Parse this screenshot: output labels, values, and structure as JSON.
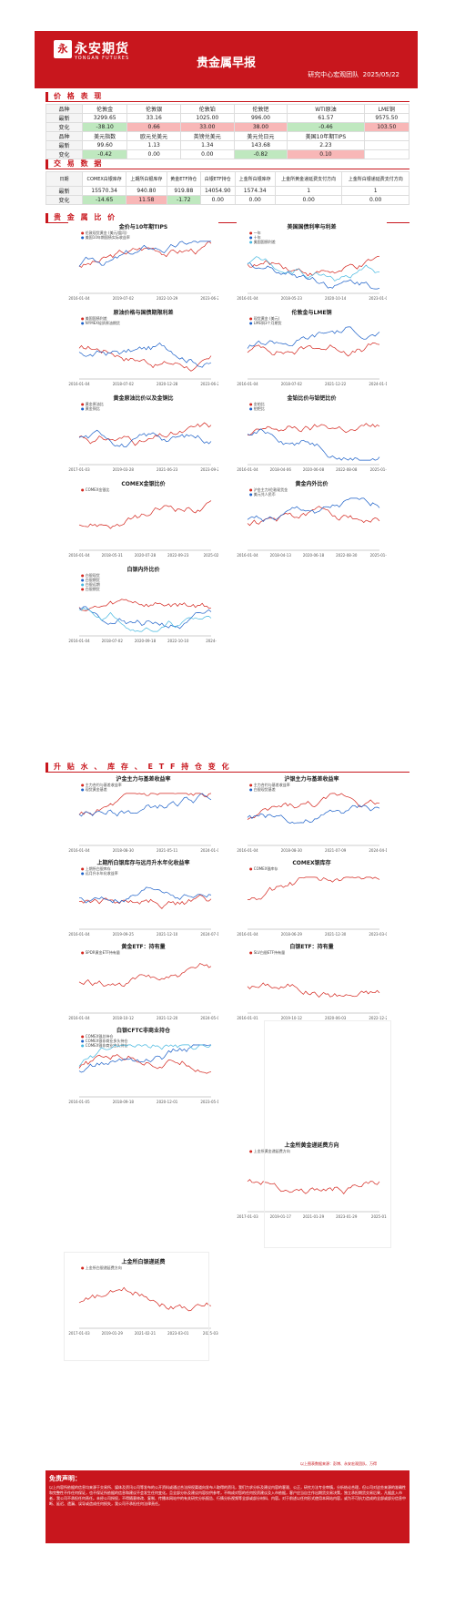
{
  "header": {
    "brand": "永安期货",
    "brand_en": "YONGAN FUTURES",
    "title": "贵金属早报",
    "team": "研究中心宏观团队",
    "date": "2025/05/22"
  },
  "sections": {
    "price": "价 格 表 现",
    "trade": "交 易 数 据",
    "ratio": "贵 金 属 比 价",
    "stock": "升 贴 水 、 库 存 、 E T F 持 仓 变 化"
  },
  "price_table": {
    "row1": {
      "h": [
        "品种",
        "伦敦金",
        "伦敦银",
        "伦敦铂",
        "伦敦钯",
        "WTI原油",
        "LME铜"
      ],
      "latest": [
        "最新",
        "3299.65",
        "33.16",
        "1025.00",
        "996.00",
        "61.57",
        "9575.50"
      ],
      "change": [
        "变化",
        "-38.10",
        "0.66",
        "33.00",
        "38.00",
        "-0.46",
        "103.50"
      ]
    },
    "row2": {
      "h": [
        "品种",
        "美元指数",
        "欧元兑美元",
        "英镑兑美元",
        "美元兑日元",
        "美国10年期TIPS",
        ""
      ],
      "latest": [
        "最新",
        "99.60",
        "1.13",
        "1.34",
        "143.68",
        "2.23",
        ""
      ],
      "change": [
        "变化",
        "-0.42",
        "0.00",
        "0.00",
        "-0.82",
        "0.10",
        ""
      ]
    }
  },
  "trade_table": {
    "h": [
      "日期",
      "COMEX白银库存",
      "上期所白银库存",
      "黄金ETF持仓",
      "白银ETF持仓",
      "上金所白银库存",
      "上金所黄金递延费支付方向",
      "上金所白银递延费支付方向"
    ],
    "latest": [
      "最新",
      "15570.34",
      "940.80",
      "919.88",
      "14054.90",
      "1574.34",
      "1",
      "1"
    ],
    "change": [
      "变化",
      "-14.65",
      "11.58",
      "-1.72",
      "0.00",
      "0.00",
      "0.00",
      "0.00"
    ]
  },
  "charts": [
    {
      "title": "金价与10年期TIPS",
      "legend": [
        "伦敦现货黄金 (美元/盎司)",
        "美国10年期国债实际收益率"
      ],
      "x": [
        "2016-01-04",
        "2019-07-02",
        "2022-10-29",
        "2023-06-26"
      ]
    },
    {
      "title": "美国国债利率与利差",
      "legend": [
        "一年",
        "十年",
        "美国国债利差"
      ],
      "x": [
        "2016-01-04",
        "2018-05-23",
        "2020-10-14",
        "2023-01-08"
      ]
    },
    {
      "title": "原油价格与国债期限利差",
      "legend": [
        "美国国债利差",
        "NYMEX轻质原油期货"
      ],
      "x": [
        "2016-01-04",
        "2018-07-02",
        "2020-12-28",
        "2023-06-26"
      ]
    },
    {
      "title": "伦敦金与LME铜",
      "legend": [
        "现货黄金 (美元)",
        "LME铜3个月期货"
      ],
      "x": [
        "2016-01-04",
        "2018-07-02",
        "2021-12-22",
        "2024-01-18"
      ]
    },
    {
      "title": "黄金原油比价以及金铜比",
      "legend": [
        "黄金原油比",
        "黄金铜比"
      ],
      "x": [
        "2017-01-03",
        "2019-03-28",
        "2021-06-23",
        "2023-09-21"
      ]
    },
    {
      "title": "金铂比价与铂钯比价",
      "legend": [
        "金铂比",
        "铂钯比"
      ],
      "x": [
        "2016-01-04",
        "2018-04-06",
        "2020-06-08",
        "2022-08-08",
        "2025-01-0"
      ]
    },
    {
      "title": "COMEX金银比价",
      "legend": [
        "COMEX金银比"
      ],
      "x": [
        "2016-01-04",
        "2018-05-31",
        "2020-07-28",
        "2022-09-23",
        "2025-02"
      ]
    },
    {
      "title": "黄金内外比价",
      "legend": [
        "沪金主力/伦敦现货金",
        "美元兑人民币"
      ],
      "x": [
        "2016-01-04",
        "2018-04-13",
        "2020-06-18",
        "2022-08-30",
        "2025-01-0"
      ]
    },
    {
      "title": "白银内外比价",
      "legend": [
        "白银现货",
        "白银期货",
        "白银远期",
        "白银期货"
      ],
      "x": [
        "2016-01-04",
        "2018-07-02",
        "2020-09-18",
        "2022-10-10",
        "2024-"
      ]
    },
    {
      "title": "沪金主力与基差收益率",
      "legend": [
        "主力合约与基差收益率",
        "现货黄金基差"
      ],
      "x": [
        "2016-01-04",
        "2018-08-30",
        "2021-05-11",
        "2024-01-09"
      ]
    },
    {
      "title": "沪银主力与基差收益率",
      "legend": [
        "主力合约与基差收益率",
        "白银现货基差"
      ],
      "x": [
        "2016-01-04",
        "2018-08-30",
        "2021-07-09",
        "2024-04-15"
      ]
    },
    {
      "title": "上期所白银库存与远月升水年化收益率",
      "legend": [
        "上期所白银库存",
        "远月升水年化收益率"
      ],
      "x": [
        "2016-01-04",
        "2019-09-25",
        "2021-12-10",
        "2024-07-19"
      ]
    },
    {
      "title": "COMEX银库存",
      "legend": [
        "COMEX银库存"
      ],
      "x": [
        "2016-01-04",
        "2018-06-29",
        "2021-12-30",
        "2023-03-07"
      ]
    },
    {
      "title": "黄金ETF：持有量",
      "legend": [
        "SPDR黄金ETF持有量"
      ],
      "x": [
        "2016-01-04",
        "2018-10-12",
        "2021-12-20",
        "2024-05-07"
      ]
    },
    {
      "title": "白银ETF：持有量",
      "legend": [
        "SLV白银ETF持有量"
      ],
      "x": [
        "2016-01-01",
        "2019-10-12",
        "2020-06-03",
        "2022-12-29"
      ]
    },
    {
      "title": "白银CFTC非商业持仓",
      "legend": [
        "COMEX银总持仓",
        "COMEX银非商业多头持仓",
        "COMEX银非商业空头持仓"
      ],
      "x": [
        "2016-01-05",
        "2018-09-18",
        "2020-12-01",
        "2023-05-16"
      ]
    },
    {
      "title": "上金所黄金递延费方向",
      "legend": [
        "上金所黄金递延费方向"
      ],
      "x": [
        "2017-01-03",
        "2019-01-17",
        "2021-01-29",
        "2023-01-29",
        "2025-01-"
      ]
    },
    {
      "title": "上金所白银递延费",
      "legend": [
        "上金所白银递延费方向"
      ],
      "x": [
        "2017-01-03",
        "2019-01-29",
        "2021-02-21",
        "2023-03-01",
        "2025-03-"
      ]
    }
  ],
  "note": "以上图表数据来源：彭博、永安宏观团队、万得",
  "footer": {
    "title": "免责声明：",
    "text": "以上内容所依据的信息均来源于交易所、媒体及资讯公司等发布的公开资料或通过合法授权渠道向发布人取得的资讯，我们力求分析及建议内容的客观、公正，研究方法专业审慎，分析结论合理，但公司对这些来源的准确性和完整性不作任何保证，也不保证所依据的信息和建议不会发生任何变化。且全部分析及建议内容仅供参考，不构成对您的任何投资建议及入市依据，客户应当自主作出期货交易决策，独立承担期货交易后果，凡据此入市者，我公司不承担任何责任。未经公司授权，不得随意修改、复制、传播本网站中的有关研究分析报告、行情分析视频等全部或部分材料、内容。对于前述以任何形式使用本网站内容，或为不可抗力造成的全部或部分信息中断、延迟、遗漏、误导或造成任何损失，我公司不承担任何法律责任。"
  }
}
